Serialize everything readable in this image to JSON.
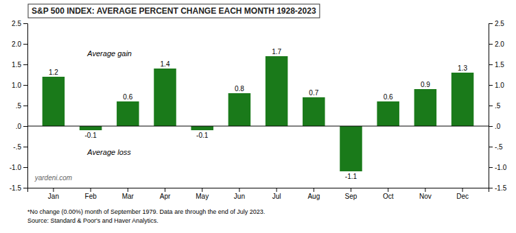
{
  "chart_data": {
    "type": "bar",
    "title": "S&P 500 INDEX: AVERAGE PERCENT CHANGE EACH MONTH 1928-2023",
    "categories": [
      "Jan",
      "Feb",
      "Mar",
      "Apr",
      "May",
      "Jun",
      "Jul",
      "Aug",
      "Sep",
      "Oct",
      "Nov",
      "Dec"
    ],
    "values": [
      1.2,
      -0.1,
      0.6,
      1.4,
      -0.1,
      0.8,
      1.7,
      0.7,
      -1.1,
      0.6,
      0.9,
      1.3
    ],
    "color": "#1a7a1a",
    "data_labels": true,
    "ylim": [
      -1.5,
      2.5
    ],
    "yticks": [
      -1.5,
      {
        "value": -1.0,
        "label": "-1.0"
      },
      {
        "value": -0.5,
        "label": "-.5"
      },
      {
        "value": 0.0,
        "label": ".0"
      },
      {
        "value": 0.5,
        "label": ".5"
      },
      {
        "value": 1.0,
        "label": "1.0"
      },
      1.5,
      {
        "value": 2.0,
        "label": "2.0"
      },
      2.5
    ],
    "y2lim": [
      -1.5,
      2.5
    ],
    "y2ticks": [
      -1.5,
      {
        "value": -1.0,
        "label": "-1.0"
      },
      {
        "value": -0.5,
        "label": "-.5"
      },
      {
        "value": 0.0,
        "label": ".0"
      },
      {
        "value": 0.5,
        "label": ".5"
      },
      {
        "value": 1.0,
        "label": "1.0"
      },
      1.5,
      {
        "value": 2.0,
        "label": "2.0"
      },
      2.5
    ],
    "annotations": [
      "Average gain",
      "Average loss",
      "yardeni.com",
      "*No change (0.00%) month of September 1979. Data are through the end of July 2023.",
      "Source: Standard & Poor's and Haver Analytics."
    ]
  }
}
